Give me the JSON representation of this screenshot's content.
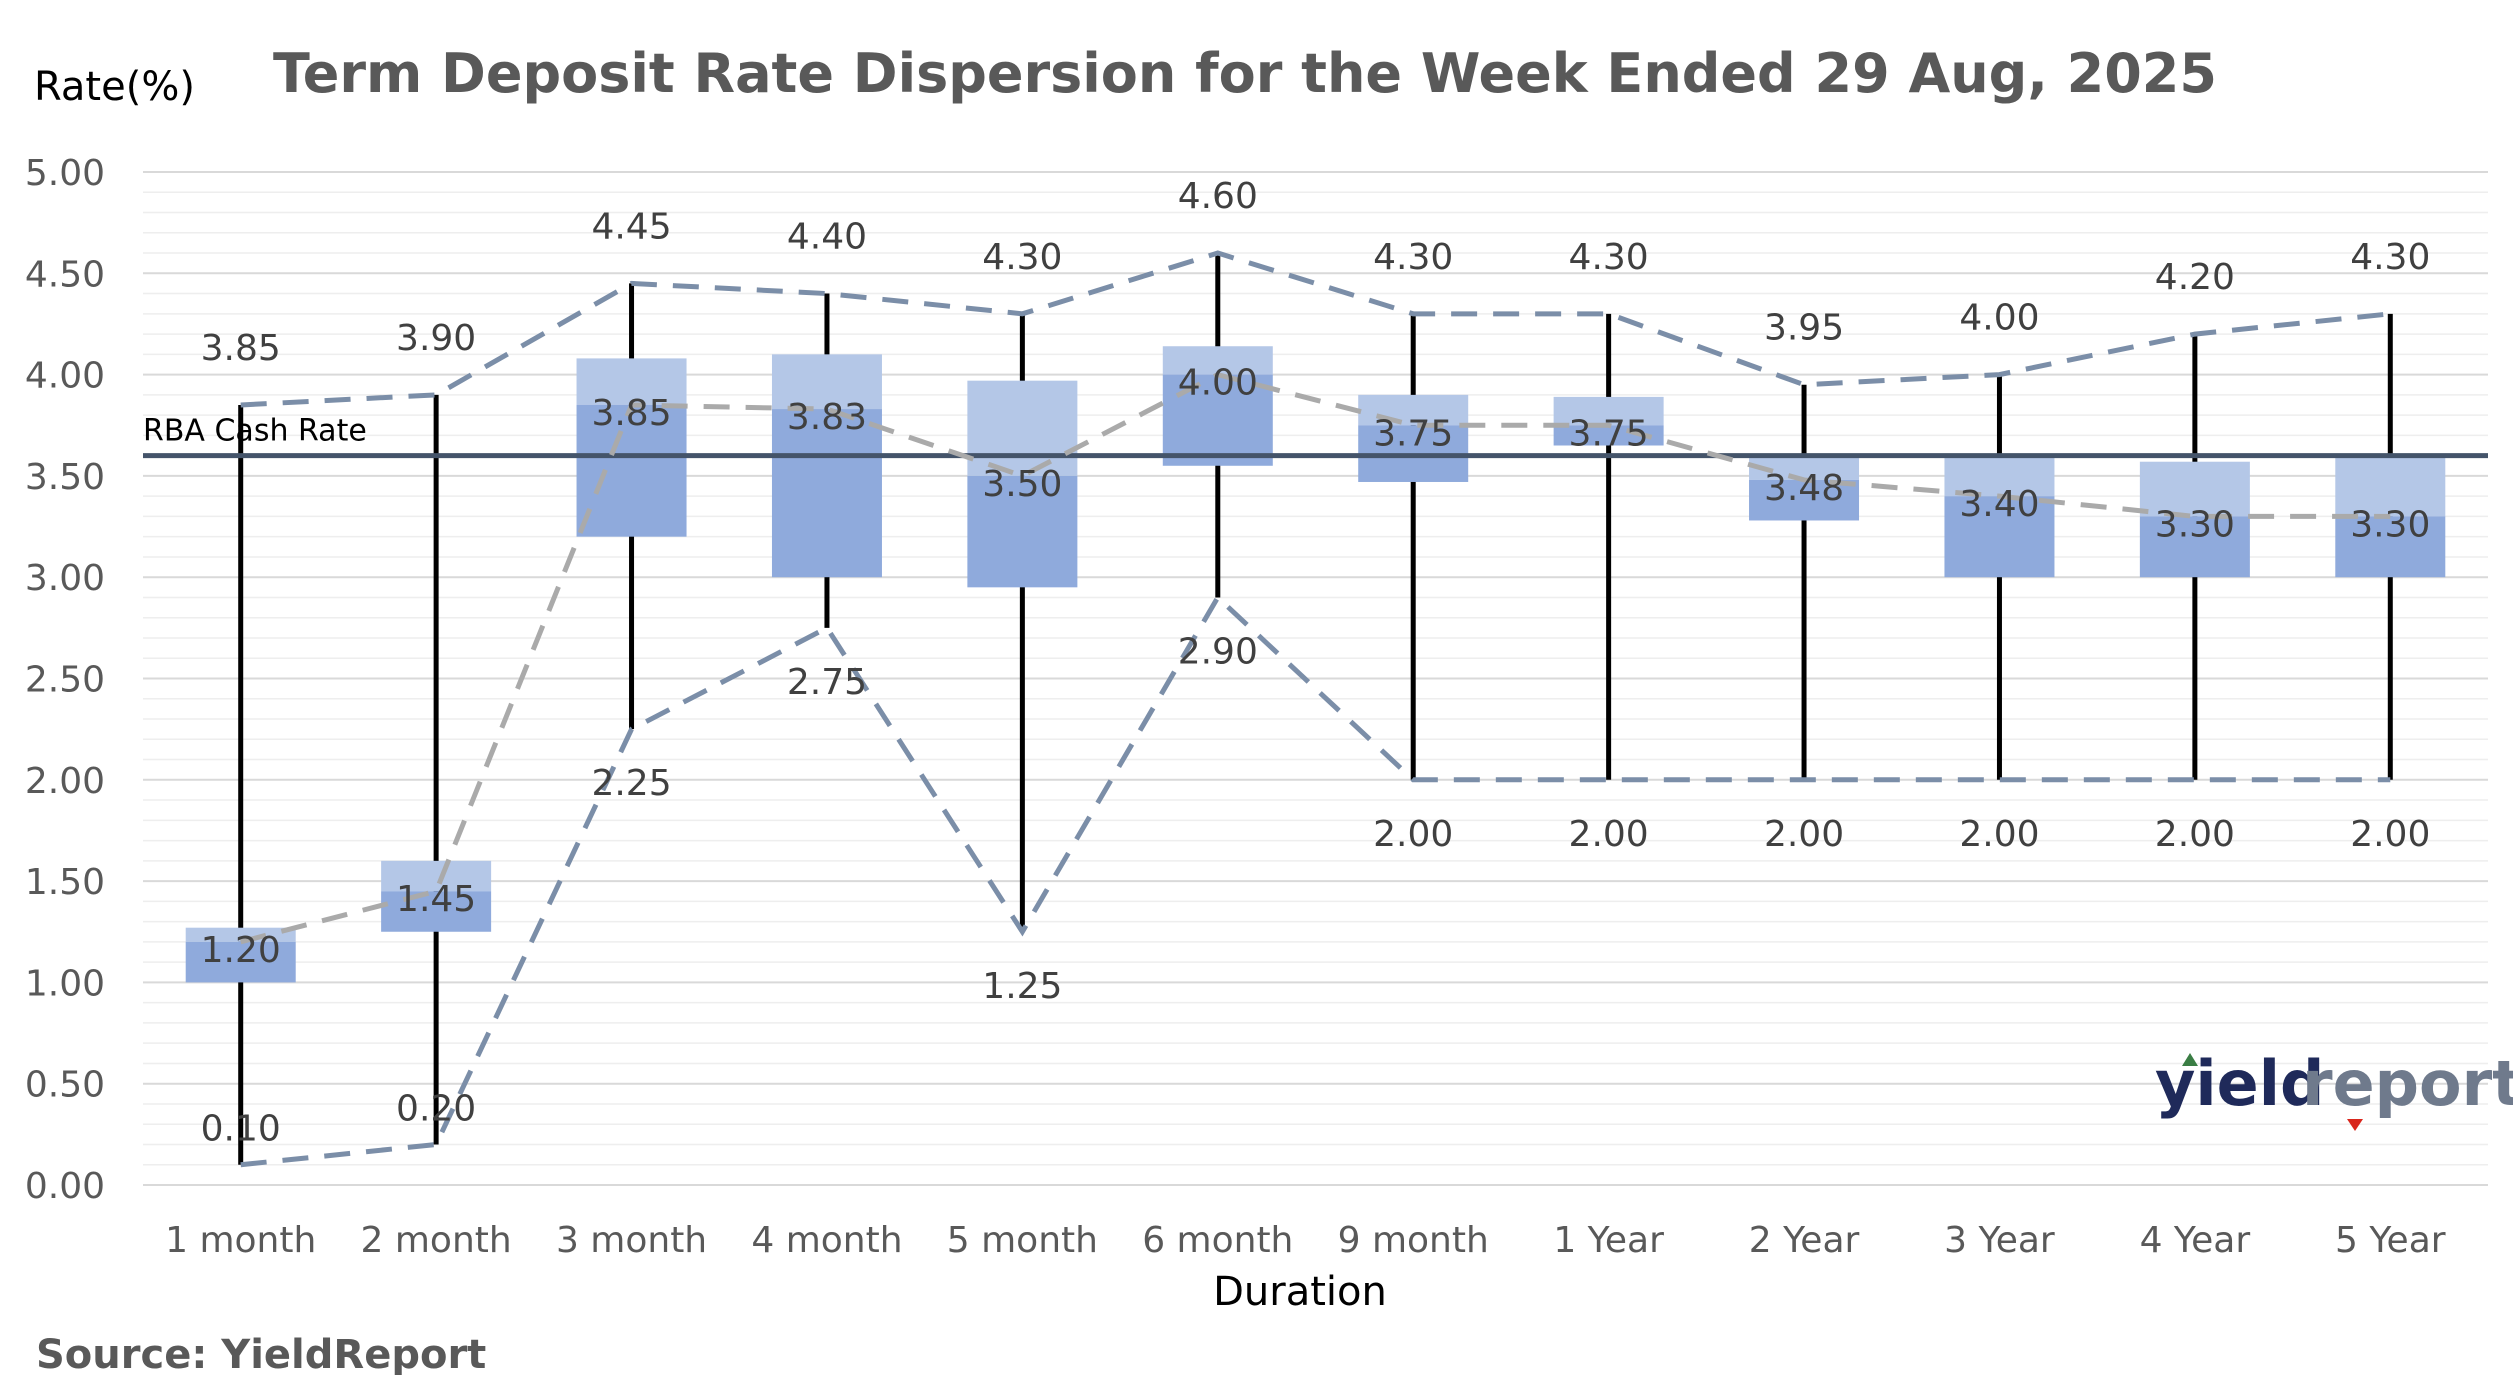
{
  "chart_data": {
    "type": "box",
    "title": "Term Deposit Rate Dispersion for the Week Ended 29 Aug, 2025",
    "ylabel": "Rate(%)",
    "xlabel": "Duration",
    "ylim": [
      0,
      5
    ],
    "ytick_labels": [
      "0.00",
      "0.50",
      "1.00",
      "1.50",
      "2.00",
      "2.50",
      "3.00",
      "3.50",
      "4.00",
      "4.50",
      "5.00"
    ],
    "categories": [
      "1 month",
      "2 month",
      "3 month",
      "4 month",
      "5 month",
      "6 month",
      "9 month",
      "1  Year",
      "2  Year",
      "3  Year",
      "4  Year",
      "5  Year"
    ],
    "max": [
      3.85,
      3.9,
      4.45,
      4.4,
      4.3,
      4.6,
      4.3,
      4.3,
      3.95,
      4.0,
      4.2,
      4.3
    ],
    "q3": [
      1.27,
      1.6,
      4.08,
      4.1,
      3.97,
      4.14,
      3.9,
      3.89,
      3.6,
      3.6,
      3.57,
      3.6
    ],
    "median": [
      1.2,
      1.45,
      3.85,
      3.83,
      3.5,
      4.0,
      3.75,
      3.75,
      3.48,
      3.4,
      3.3,
      3.3
    ],
    "q1": [
      1.0,
      1.25,
      3.2,
      3.0,
      2.95,
      3.55,
      3.47,
      3.65,
      3.28,
      3.0,
      3.0,
      3.0
    ],
    "min": [
      0.1,
      0.2,
      2.25,
      2.75,
      1.25,
      2.9,
      2.0,
      2.0,
      2.0,
      2.0,
      2.0,
      2.0
    ],
    "max_labels": [
      "3.85",
      "3.90",
      "4.45",
      "4.40",
      "4.30",
      "4.60",
      "4.30",
      "4.30",
      "3.95",
      "4.00",
      "4.20",
      "4.30"
    ],
    "median_labels": [
      "1.20",
      "1.45",
      "3.85",
      "3.83",
      "3.50",
      "4.00",
      "3.75",
      "3.75",
      "3.48",
      "3.40",
      "3.30",
      "3.30"
    ],
    "min_labels": [
      "0.10",
      "0.20",
      "2.25",
      "2.75",
      "1.25",
      "2.90",
      "2.00",
      "2.00",
      "2.00",
      "2.00",
      "2.00",
      "2.00"
    ],
    "reference_line": {
      "label": "RBA Cash Rate",
      "value": 3.6
    },
    "colors": {
      "upper_box": "#b4c7e7",
      "lower_box": "#8faadc",
      "whisker": "#000000",
      "max_min_dash": "#7b8ea8",
      "median_dash": "#aaaaaa",
      "rba_line": "#44546a",
      "grid": "#d9d9d9"
    }
  },
  "source": "Source: YieldReport",
  "logo": {
    "part1": "yield",
    "part2": "report"
  }
}
